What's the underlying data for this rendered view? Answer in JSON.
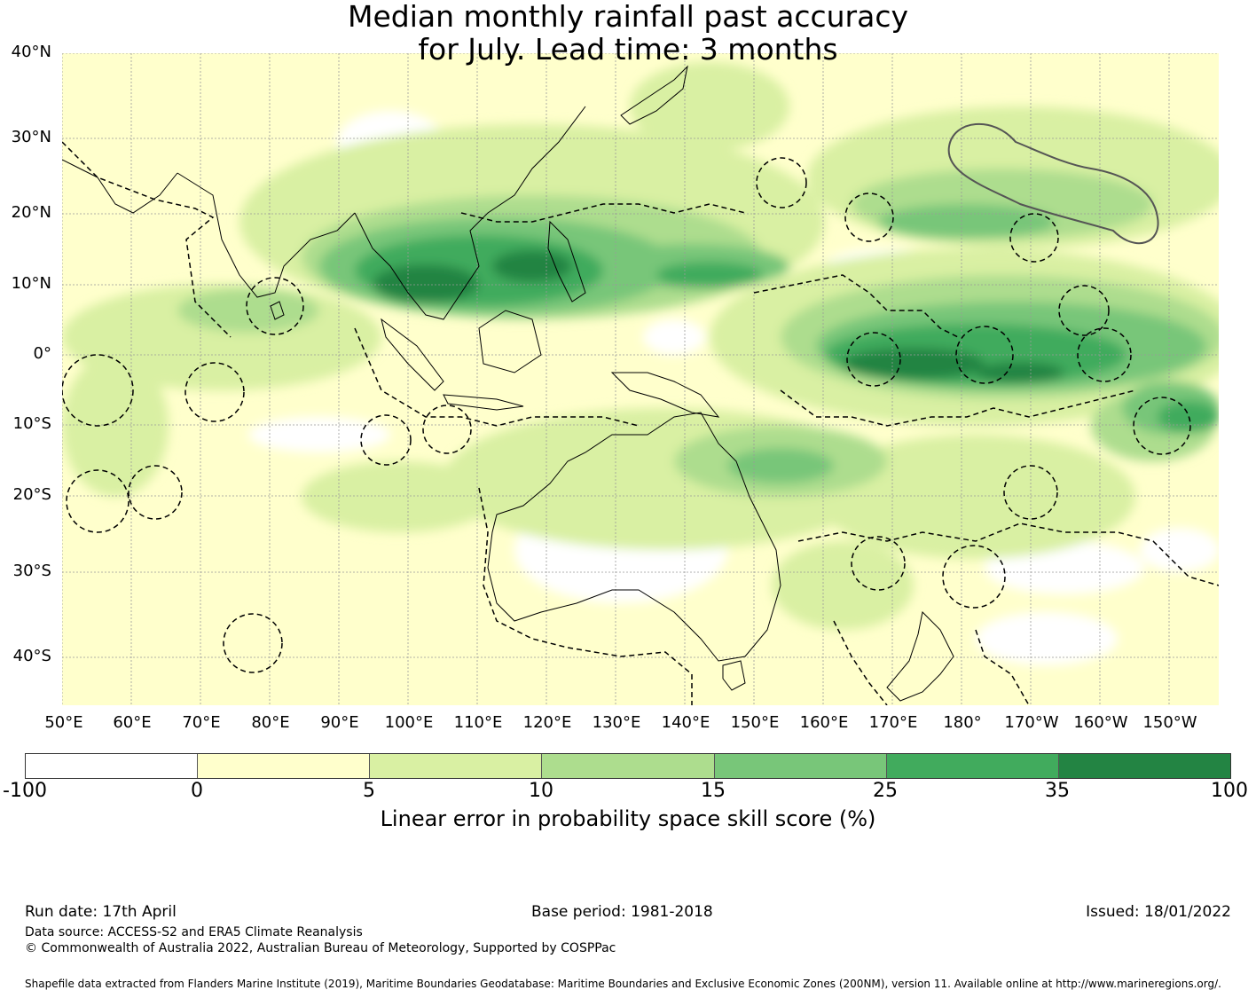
{
  "title": {
    "line1": "Median monthly rainfall past accuracy",
    "line2": "for July. Lead time: 3 months"
  },
  "map": {
    "lat_labels": [
      "40°N",
      "30°N",
      "20°N",
      "10°N",
      "0°",
      "10°S",
      "20°S",
      "30°S",
      "40°S"
    ],
    "lon_labels": [
      "50°E",
      "60°E",
      "70°E",
      "80°E",
      "90°E",
      "100°E",
      "110°E",
      "120°E",
      "130°E",
      "140°E",
      "150°E",
      "160°E",
      "170°E",
      "180°",
      "170°W",
      "160°W",
      "150°W"
    ],
    "colors": {
      "below_0": "#ffffff",
      "c0_5": "#ffffcc",
      "c5_10": "#d9f0a3",
      "c10_15": "#addd8e",
      "c15_25": "#78c679",
      "c25_35": "#41ab5d",
      "c35_100": "#238443"
    }
  },
  "colorbar": {
    "ticks": [
      "-100",
      "0",
      "5",
      "10",
      "15",
      "25",
      "35",
      "100"
    ],
    "label": "Linear error in probability space skill score (%)",
    "colors": [
      "#ffffff",
      "#ffffcc",
      "#d9f0a3",
      "#addd8e",
      "#78c679",
      "#41ab5d",
      "#238443"
    ]
  },
  "footer": {
    "run_date": "Run date: 17th April",
    "base_period": "Base period: 1981-2018",
    "issued": "Issued: 18/01/2022",
    "data_source": "Data source: ACCESS-S2 and ERA5 Climate Reanalysis",
    "copyright": "© Commonwealth of Australia 2022, Australian Bureau of Meteorology, Supported by COSPPac",
    "shapefile": "Shapefile data extracted from Flanders Marine Institute (2019), Maritime Boundaries Geodatabase: Maritime Boundaries and Exclusive Economic Zones (200NM), version 11. Available online at http://www.marineregions.org/."
  }
}
